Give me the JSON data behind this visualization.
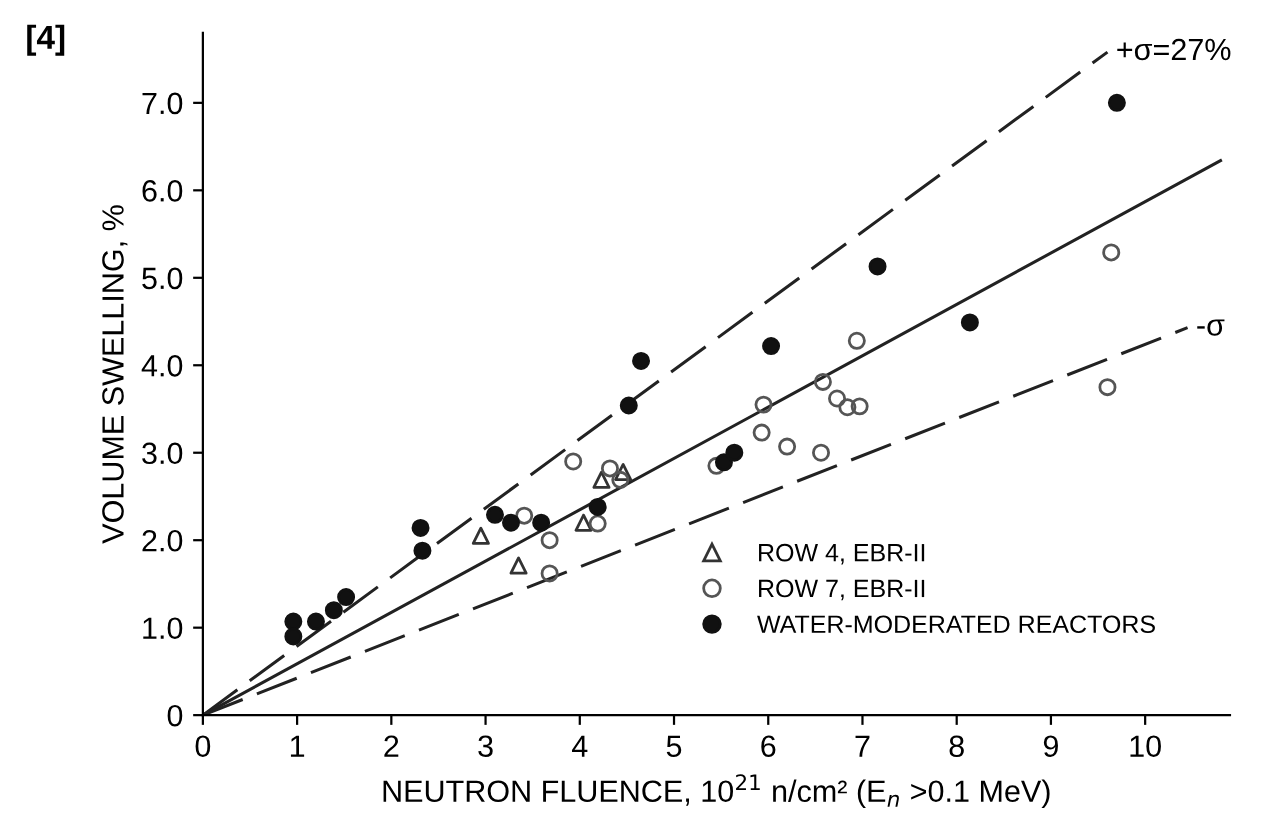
{
  "chart_data": {
    "type": "scatter",
    "xlabel": "NEUTRON FLUENCE, 10$^{21}$ n/cm² (E$_{n}$ >0.1 MeV)",
    "ylabel": "VOLUME SWELLING, %",
    "annotations": [
      "[4]"
    ],
    "xlim": [
      0,
      10.9
    ],
    "ylim": [
      0,
      7.8
    ],
    "xticks": [
      0,
      1,
      2,
      3,
      4,
      5,
      6,
      7,
      8,
      9,
      10
    ],
    "yticks": [
      0,
      {
        "value": 1,
        "label": "1.0"
      },
      {
        "value": 2,
        "label": "2.0"
      },
      {
        "value": 3,
        "label": "3.0"
      },
      {
        "value": 4,
        "label": "4.0"
      },
      {
        "value": 5,
        "label": "5.0"
      },
      {
        "value": 6,
        "label": "6.0"
      },
      {
        "value": 7,
        "label": "7.0"
      }
    ],
    "grid": false,
    "legend": "bottom right",
    "series": [
      {
        "name": "ROW 4, EBR-II",
        "marker": "triangle",
        "color": "#333333",
        "x": [
          2.95,
          3.35,
          4.04,
          4.23,
          4.46
        ],
        "values": [
          2.05,
          1.71,
          2.2,
          2.69,
          2.78
        ]
      },
      {
        "name": "ROW 7, EBR-II",
        "marker": "circle",
        "color": "#555555",
        "x": [
          3.41,
          3.68,
          3.68,
          3.93,
          4.19,
          4.32,
          4.43,
          5.45,
          5.93,
          5.95,
          6.2,
          6.56,
          6.58,
          6.73,
          6.84,
          6.94,
          6.97,
          9.6,
          9.64
        ],
        "values": [
          2.28,
          2.0,
          1.62,
          2.9,
          2.19,
          2.82,
          2.69,
          2.85,
          3.23,
          3.55,
          3.07,
          3.0,
          3.81,
          3.62,
          3.52,
          4.28,
          3.53,
          3.75,
          5.29
        ]
      },
      {
        "name": "WATER-MODERATED REACTORS",
        "marker": "circle",
        "color": "#111111",
        "x": [
          0.96,
          0.96,
          1.2,
          1.39,
          1.52,
          2.31,
          2.33,
          3.1,
          3.27,
          3.59,
          4.19,
          4.52,
          4.65,
          5.53,
          5.64,
          6.03,
          7.16,
          8.14,
          9.7
        ],
        "values": [
          1.07,
          0.9,
          1.07,
          1.2,
          1.35,
          2.14,
          1.88,
          2.29,
          2.2,
          2.2,
          2.38,
          3.54,
          4.05,
          2.89,
          3.0,
          4.22,
          5.13,
          4.49,
          7.0
        ]
      },
      {
        "name": "+σ=27%",
        "type": "line",
        "marker": "none",
        "line_style": "dashed",
        "color": "#222222",
        "x": [
          0,
          9.6
        ],
        "values": [
          0,
          7.58
        ]
      },
      {
        "type": "line",
        "marker": "none",
        "line_style": "solid",
        "color": "#222222",
        "x": [
          0,
          10.8
        ],
        "values": [
          0,
          6.34
        ]
      },
      {
        "name": "-σ",
        "type": "line",
        "marker": "none",
        "line_style": "dashed",
        "color": "#222222",
        "x": [
          0,
          10.45
        ],
        "values": [
          0,
          4.43
        ]
      }
    ]
  }
}
